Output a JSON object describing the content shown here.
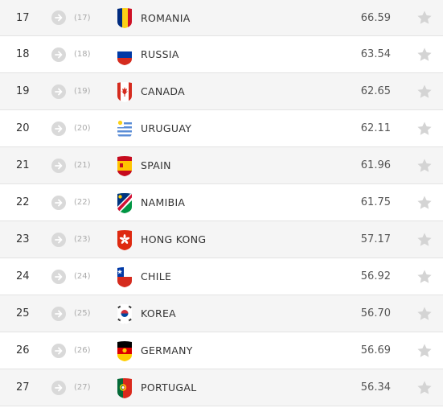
{
  "rows": [
    {
      "rank": "17",
      "prev": "(17)",
      "team": "ROMANIA",
      "points": "66.59",
      "flag": "romania-flag"
    },
    {
      "rank": "18",
      "prev": "(18)",
      "team": "RUSSIA",
      "points": "63.54",
      "flag": "russia-flag"
    },
    {
      "rank": "19",
      "prev": "(19)",
      "team": "CANADA",
      "points": "62.65",
      "flag": "canada-flag"
    },
    {
      "rank": "20",
      "prev": "(20)",
      "team": "URUGUAY",
      "points": "62.11",
      "flag": "uruguay-flag"
    },
    {
      "rank": "21",
      "prev": "(21)",
      "team": "SPAIN",
      "points": "61.96",
      "flag": "spain-flag"
    },
    {
      "rank": "22",
      "prev": "(22)",
      "team": "NAMIBIA",
      "points": "61.75",
      "flag": "namibia-flag"
    },
    {
      "rank": "23",
      "prev": "(23)",
      "team": "HONG KONG",
      "points": "57.17",
      "flag": "hong-kong-flag"
    },
    {
      "rank": "24",
      "prev": "(24)",
      "team": "CHILE",
      "points": "56.92",
      "flag": "chile-flag"
    },
    {
      "rank": "25",
      "prev": "(25)",
      "team": "KOREA",
      "points": "56.70",
      "flag": "korea-flag"
    },
    {
      "rank": "26",
      "prev": "(26)",
      "team": "GERMANY",
      "points": "56.69",
      "flag": "germany-flag"
    },
    {
      "rank": "27",
      "prev": "(27)",
      "team": "PORTUGAL",
      "points": "56.34",
      "flag": "portugal-flag"
    }
  ],
  "icons": {
    "movement": "arrow-right-circle-icon",
    "favorite": "star-icon"
  },
  "colors": {
    "row_alt": "#f5f5f5",
    "divider": "#e3e3e3",
    "icon_grey": "#d9d9d9",
    "star_grey": "#d4d4d4"
  }
}
